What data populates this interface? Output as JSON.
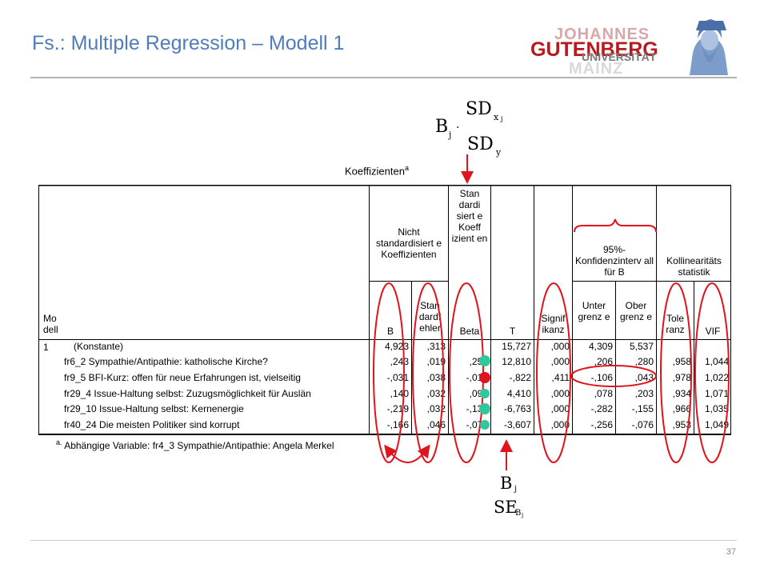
{
  "slide": {
    "title": "Fs.: Multiple Regression – Modell 1",
    "page_number": "37"
  },
  "logo": {
    "line1": "JOHANNES",
    "line2": "GUTENBERG",
    "line3": "UNIVERSITÄT",
    "line4": "MAINZ"
  },
  "formula_top": {
    "b": "B",
    "sub_j": "j",
    "dot": "·",
    "sd": "SD",
    "sub_x": "x",
    "sub_xj": "j",
    "sub_y": "y"
  },
  "formula_bottom": {
    "b": "B",
    "sub_j": "j",
    "se": "SE",
    "sub_b": "B",
    "sub_bj": "j"
  },
  "table": {
    "title": "Koeffizienten",
    "title_sup": "a",
    "headers": {
      "modell": "Mo dell",
      "unstd": "Nicht standardisiert e Koeffizienten",
      "std": "Stan dardi siert e Koeff izient en",
      "ci": "95%-Konfidenzinterv all für B",
      "koll": "Kollinearitäts statistik",
      "b": "B",
      "se": "Stan dardf ehler",
      "beta": "Beta",
      "t": "T",
      "sig": "Signif ikanz",
      "lower": "Unter grenz e",
      "upper": "Ober grenz e",
      "tol": "Tole ranz",
      "vif": "VIF"
    },
    "model_number": "1",
    "rows": [
      {
        "label": "(Konstante)",
        "b": "4,923",
        "se": ",313",
        "beta": "",
        "t": "15,727",
        "sig": ",000",
        "lower": "4,309",
        "upper": "5,537",
        "tol": "",
        "vif": ""
      },
      {
        "label": "fr6_2  Sympathie/Antipathie: katholische Kirche?",
        "b": ",243",
        "se": ",019",
        "beta": ",259",
        "t": "12,810",
        "sig": ",000",
        "lower": ",206",
        "upper": ",280",
        "tol": ",958",
        "vif": "1,044"
      },
      {
        "label": "fr9_5  BFI-Kurz: offen für neue Erfahrungen ist, vielseitig",
        "b": "-,031",
        "se": ",038",
        "beta": "-,016",
        "t": "-,822",
        "sig": ",411",
        "lower": "-,106",
        "upper": ",043",
        "tol": ",978",
        "vif": "1,022"
      },
      {
        "label": "fr29_4  Issue-Haltung selbst: Zuzugsmöglichkeit für Auslän",
        "b": ",140",
        "se": ",032",
        "beta": ",090",
        "t": "4,410",
        "sig": ",000",
        "lower": ",078",
        "upper": ",203",
        "tol": ",934",
        "vif": "1,071"
      },
      {
        "label": "fr29_10  Issue-Haltung selbst: Kernenergie",
        "b": "-,219",
        "se": ",032",
        "beta": "-,136",
        "t": "-6,763",
        "sig": ",000",
        "lower": "-,282",
        "upper": "-,155",
        "tol": ",966",
        "vif": "1,035"
      },
      {
        "label": "fr40_24  Die meisten Politiker sind korrupt",
        "b": "-,166",
        "se": ",046",
        "beta": "-,073",
        "t": "-3,607",
        "sig": ",000",
        "lower": "-,256",
        "upper": "-,076",
        "tol": ",953",
        "vif": "1,049"
      }
    ],
    "footnote_sup": "a.",
    "footnote": "Abhängige Variable: fr4_3  Sympathie/Antipathie: Angela Merkel"
  },
  "annotation_colors": {
    "red": "#e0141d",
    "green": "#2ec99a"
  }
}
